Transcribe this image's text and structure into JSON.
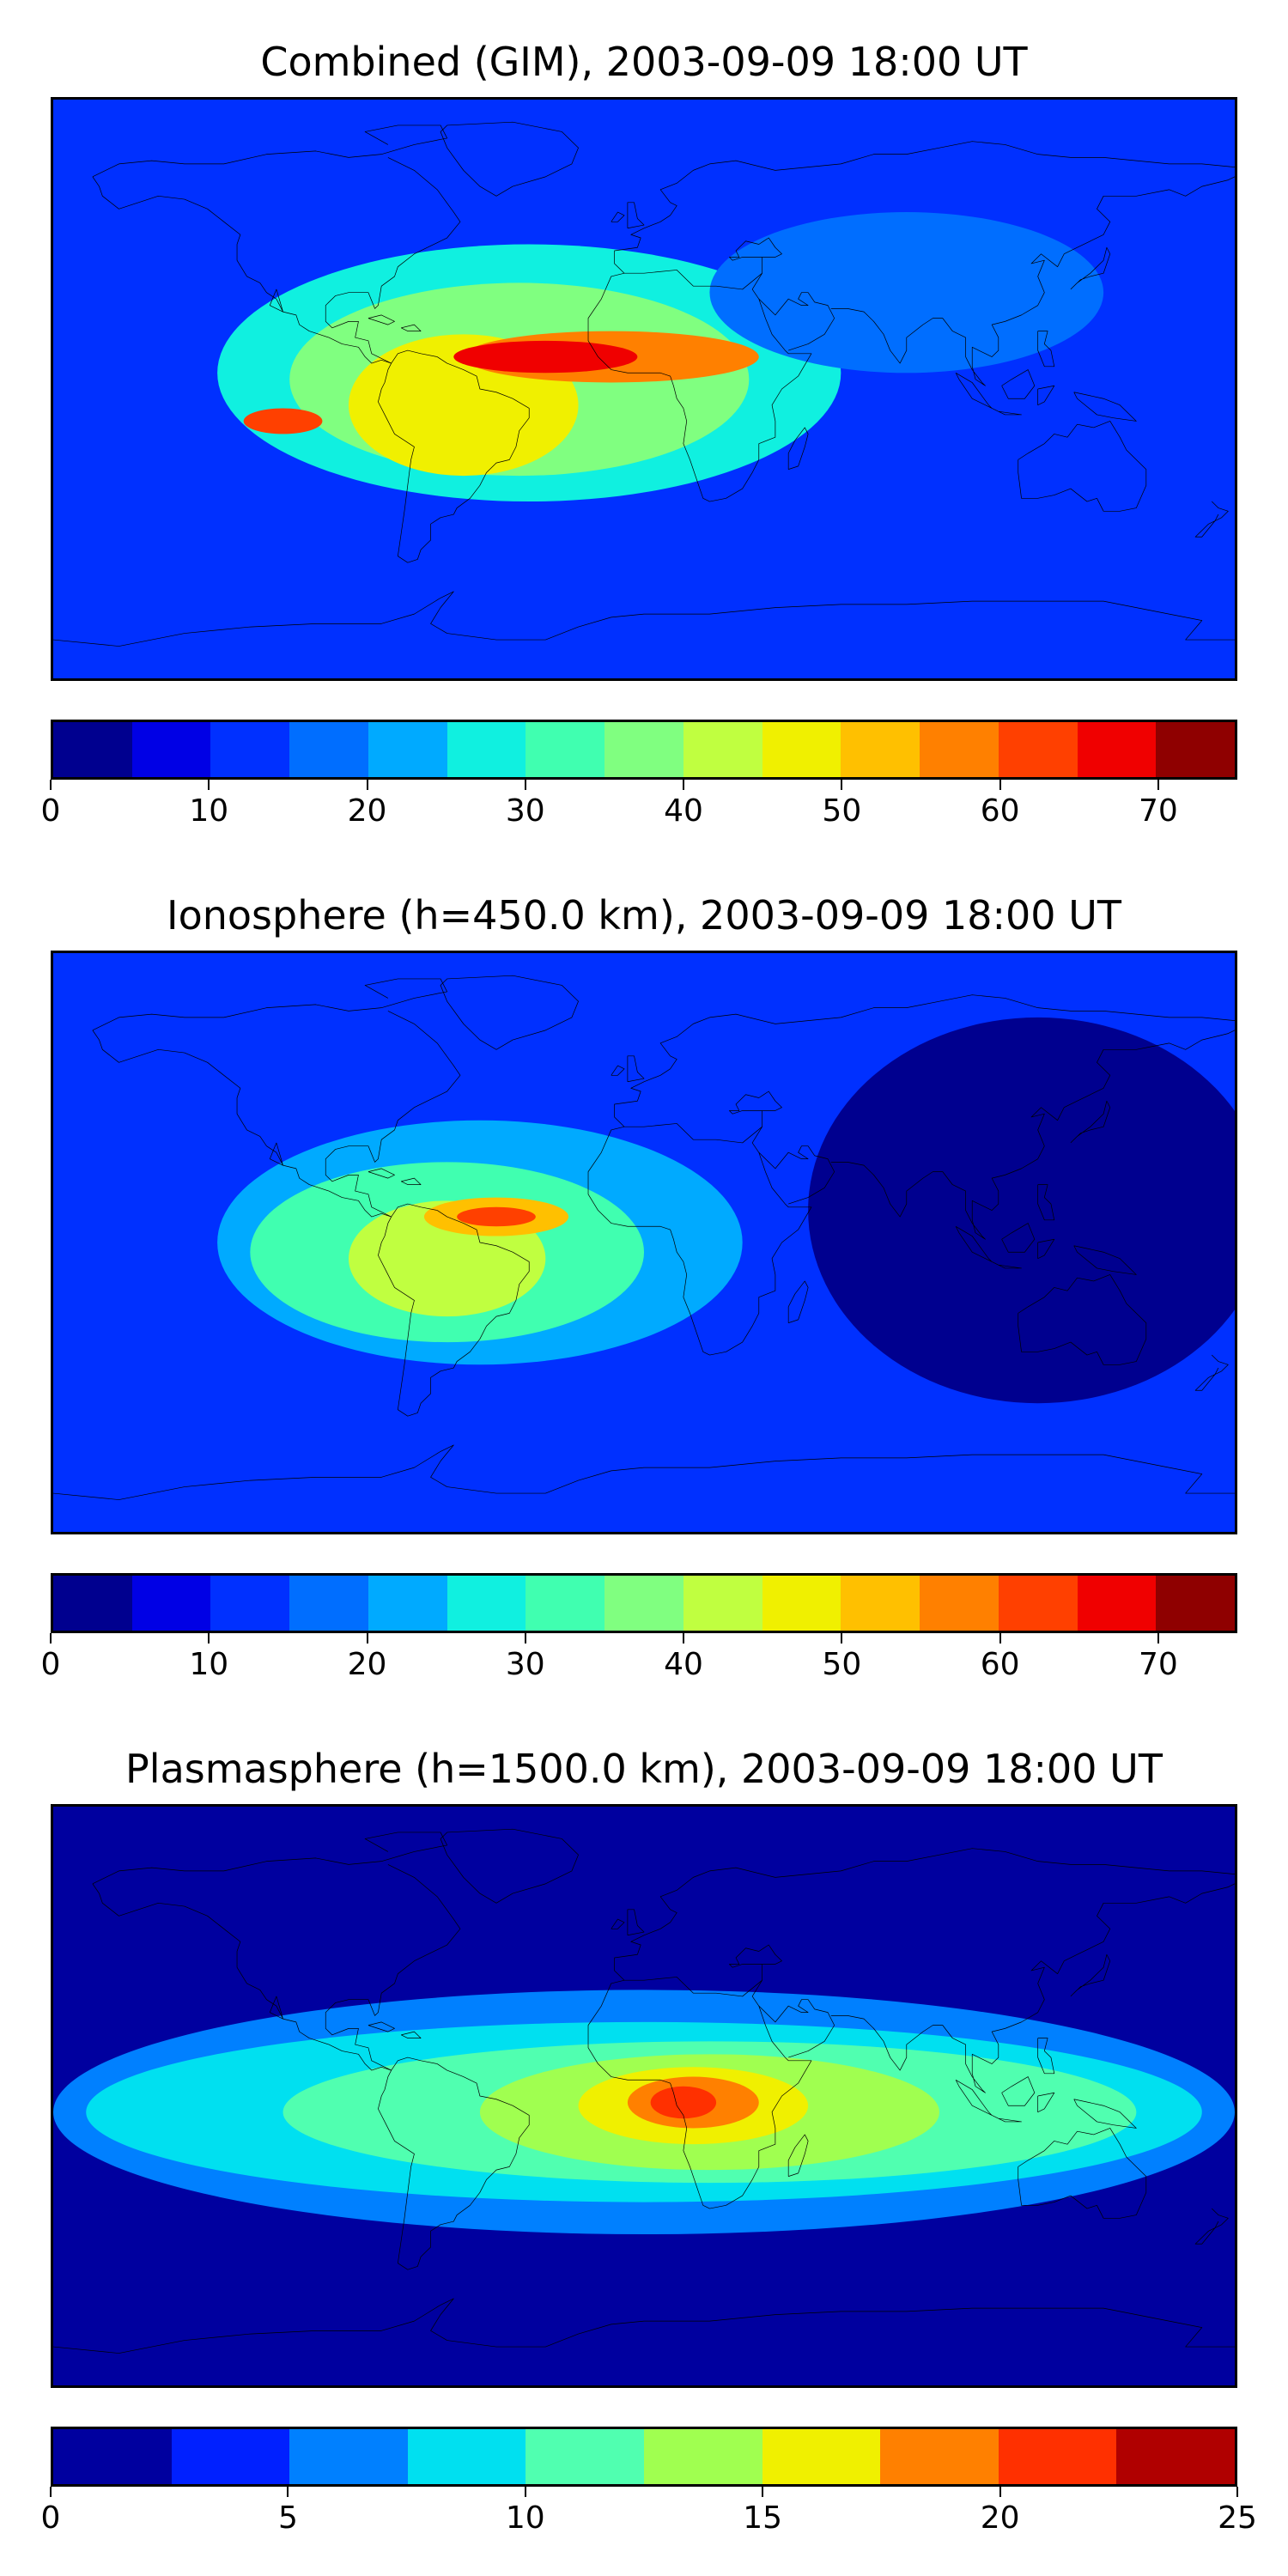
{
  "colors": {
    "jet15": [
      "#00008f",
      "#0000e5",
      "#0030ff",
      "#006eff",
      "#00aaff",
      "#10f0e0",
      "#40ffb0",
      "#80ff80",
      "#c0ff40",
      "#f0f000",
      "#ffc000",
      "#ff8000",
      "#ff4000",
      "#f00000",
      "#8f0000"
    ],
    "jet10": [
      "#00009f",
      "#0020ff",
      "#0080ff",
      "#00e0f0",
      "#50ffb0",
      "#a0ff50",
      "#f0f000",
      "#ff8000",
      "#ff3000",
      "#b00000"
    ],
    "coastline": "#000000"
  },
  "panels": [
    {
      "title": "Combined (GIM), 2003-09-09 18:00 UT",
      "colorbar": {
        "min": 0,
        "max": 75,
        "step": 5,
        "ticks": [
          "0",
          "10",
          "20",
          "30",
          "40",
          "50",
          "60",
          "70"
        ],
        "tick_values": [
          0,
          10,
          20,
          30,
          40,
          50,
          60,
          70
        ],
        "palette": "jet15"
      },
      "field": {
        "bg_level": 2,
        "features": [
          {
            "lon": -35,
            "lat": 5,
            "rlon": 95,
            "rlat": 40,
            "level": 5
          },
          {
            "lon": -38,
            "lat": 3,
            "rlon": 70,
            "rlat": 30,
            "level": 7
          },
          {
            "lon": -55,
            "lat": -5,
            "rlon": 35,
            "rlat": 22,
            "level": 9
          },
          {
            "lon": -10,
            "lat": 10,
            "rlon": 45,
            "rlat": 8,
            "level": 11
          },
          {
            "lon": -30,
            "lat": 10,
            "rlon": 28,
            "rlat": 5,
            "level": 13
          },
          {
            "lon": -110,
            "lat": -10,
            "rlon": 12,
            "rlat": 4,
            "level": 12
          },
          {
            "lon": 80,
            "lat": 30,
            "rlon": 60,
            "rlat": 25,
            "level": 3
          }
        ]
      }
    },
    {
      "title": "Ionosphere  (h=450.0 km), 2003-09-09 18:00 UT",
      "colorbar": {
        "min": 0,
        "max": 75,
        "step": 5,
        "ticks": [
          "0",
          "10",
          "20",
          "30",
          "40",
          "50",
          "60",
          "70"
        ],
        "tick_values": [
          0,
          10,
          20,
          30,
          40,
          50,
          60,
          70
        ],
        "palette": "jet15"
      },
      "field": {
        "bg_level": 2,
        "features": [
          {
            "lon": -50,
            "lat": 0,
            "rlon": 80,
            "rlat": 38,
            "level": 4
          },
          {
            "lon": -60,
            "lat": -3,
            "rlon": 60,
            "rlat": 28,
            "level": 6
          },
          {
            "lon": -60,
            "lat": -5,
            "rlon": 30,
            "rlat": 18,
            "level": 8
          },
          {
            "lon": -45,
            "lat": 8,
            "rlon": 22,
            "rlat": 6,
            "level": 10
          },
          {
            "lon": -45,
            "lat": 8,
            "rlon": 12,
            "rlat": 3,
            "level": 12
          },
          {
            "lon": 120,
            "lat": 10,
            "rlon": 70,
            "rlat": 60,
            "level": 0
          }
        ]
      }
    },
    {
      "title": "Plasmasphere (h=1500.0 km), 2003-09-09 18:00 UT",
      "colorbar": {
        "min": 0,
        "max": 25,
        "step": 2.5,
        "ticks": [
          "0",
          "5",
          "10",
          "15",
          "20",
          "25"
        ],
        "tick_values": [
          0,
          5,
          10,
          15,
          20,
          25
        ],
        "palette": "jet10"
      },
      "field": {
        "bg_level": 0,
        "features": [
          {
            "lon": 0,
            "lat": -5,
            "rlon": 180,
            "rlat": 38,
            "level": 2
          },
          {
            "lon": 0,
            "lat": -5,
            "rlon": 170,
            "rlat": 28,
            "level": 3
          },
          {
            "lon": 20,
            "lat": -5,
            "rlon": 130,
            "rlat": 22,
            "level": 4
          },
          {
            "lon": 20,
            "lat": -5,
            "rlon": 70,
            "rlat": 18,
            "level": 5
          },
          {
            "lon": 15,
            "lat": -3,
            "rlon": 35,
            "rlat": 12,
            "level": 6
          },
          {
            "lon": 15,
            "lat": -2,
            "rlon": 20,
            "rlat": 8,
            "level": 7
          },
          {
            "lon": 12,
            "lat": -2,
            "rlon": 10,
            "rlat": 5,
            "level": 8
          }
        ]
      }
    }
  ]
}
